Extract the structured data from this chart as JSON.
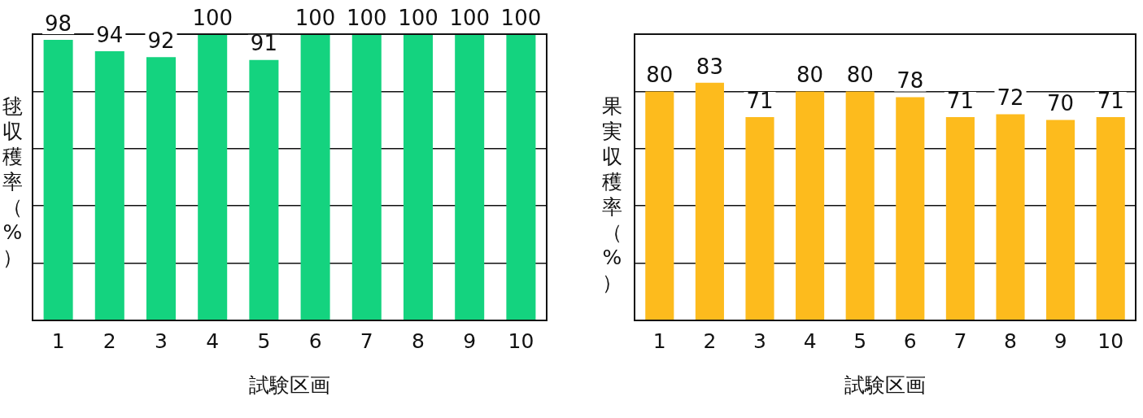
{
  "chart_data": [
    {
      "type": "bar",
      "xlabel": "試験区画",
      "ylabel": "毬収穫率（%）",
      "categories": [
        "1",
        "2",
        "3",
        "4",
        "5",
        "6",
        "7",
        "8",
        "9",
        "10"
      ],
      "series": [
        {
          "color": "#14d37f",
          "values": [
            98,
            94,
            92,
            100,
            91,
            100,
            100,
            100,
            100,
            100
          ]
        }
      ],
      "ylim": [
        0,
        100
      ],
      "yticks": [
        {
          "value": 0,
          "label": null
        },
        {
          "value": 20,
          "label": null
        },
        {
          "value": 40,
          "label": null
        },
        {
          "value": 60,
          "label": null
        },
        {
          "value": 80,
          "label": null
        },
        {
          "value": 100,
          "label": null
        }
      ],
      "grid": "y",
      "legend": false,
      "data_labels": true
    },
    {
      "type": "bar",
      "xlabel": "試験区画",
      "ylabel": "果実収穫率（%）",
      "categories": [
        "1",
        "2",
        "3",
        "4",
        "5",
        "6",
        "7",
        "8",
        "9",
        "10"
      ],
      "series": [
        {
          "color": "#fdbb1d",
          "values": [
            80,
            83,
            71,
            80,
            80,
            78,
            71,
            72,
            70,
            71
          ]
        }
      ],
      "ylim": [
        0,
        100
      ],
      "yticks": [
        {
          "value": 0,
          "label": null
        },
        {
          "value": 20,
          "label": null
        },
        {
          "value": 40,
          "label": null
        },
        {
          "value": 60,
          "label": null
        },
        {
          "value": 80,
          "label": null
        },
        {
          "value": 100,
          "label": null
        }
      ],
      "grid": "y",
      "legend": false,
      "data_labels": true
    }
  ]
}
